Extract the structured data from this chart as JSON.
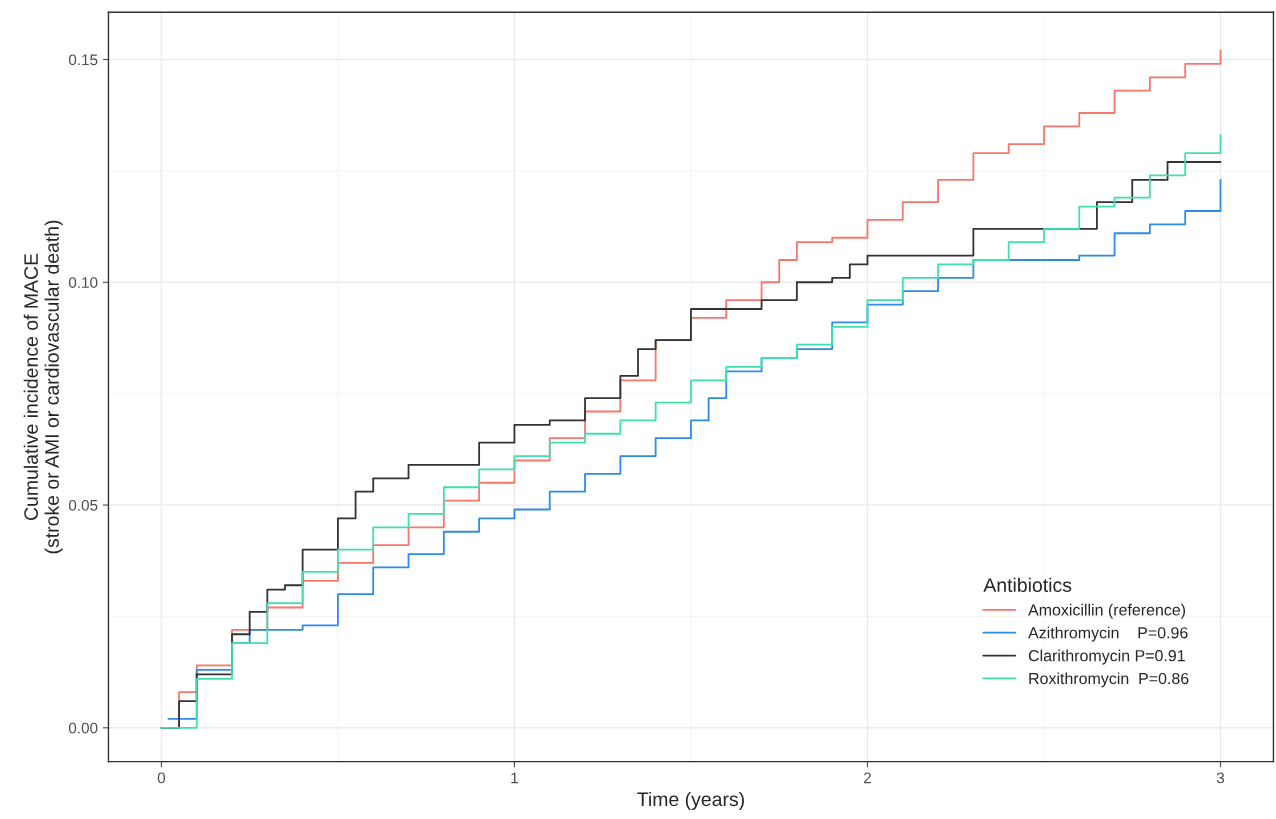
{
  "chart_data": {
    "type": "step",
    "xlabel": "Time (years)",
    "ylabel": "Cumulative incidence of MACE\n(stroke or AMI or cardiovascular death)",
    "legend_title": "Antibiotics",
    "xlim": [
      -0.15,
      3.15
    ],
    "xticks": [
      0,
      1,
      2,
      3
    ],
    "ylim": [
      -0.0076,
      0.1606
    ],
    "yticks": [
      {
        "value": 0,
        "label": "0.00"
      },
      {
        "value": 0.05,
        "label": "0.05"
      },
      {
        "value": 0.1,
        "label": "0.10"
      },
      {
        "value": 0.15,
        "label": "0.15"
      }
    ],
    "grid": true,
    "legend": "bottom right",
    "line_style": "solid",
    "marker": "none",
    "series": [
      {
        "name": "Amoxicillin (reference)",
        "color": "#f8766d",
        "x": [
          0,
          0.05,
          0.1,
          0.2,
          0.3,
          0.4,
          0.5,
          0.6,
          0.7,
          0.8,
          0.9,
          1.0,
          1.1,
          1.2,
          1.3,
          1.4,
          1.5,
          1.6,
          1.7,
          1.75,
          1.8,
          1.9,
          2.0,
          2.1,
          2.2,
          2.3,
          2.4,
          2.5,
          2.6,
          2.7,
          2.8,
          2.9,
          3.0
        ],
        "values": [
          0,
          0.008,
          0.014,
          0.022,
          0.027,
          0.033,
          0.037,
          0.041,
          0.045,
          0.051,
          0.055,
          0.06,
          0.065,
          0.071,
          0.078,
          0.087,
          0.092,
          0.096,
          0.1,
          0.105,
          0.109,
          0.11,
          0.114,
          0.118,
          0.123,
          0.129,
          0.131,
          0.135,
          0.138,
          0.143,
          0.146,
          0.149,
          0.152
        ]
      },
      {
        "name": "Azithromycin    P=0.96",
        "color": "#2b8ceb",
        "x": [
          0.02,
          0.1,
          0.2,
          0.25,
          0.4,
          0.5,
          0.6,
          0.7,
          0.8,
          0.9,
          1.0,
          1.1,
          1.2,
          1.3,
          1.4,
          1.5,
          1.55,
          1.6,
          1.7,
          1.8,
          1.9,
          2.0,
          2.1,
          2.2,
          2.3,
          2.4,
          2.6,
          2.7,
          2.8,
          2.9,
          3.0
        ],
        "values": [
          0.002,
          0.013,
          0.019,
          0.022,
          0.023,
          0.03,
          0.036,
          0.039,
          0.044,
          0.047,
          0.049,
          0.053,
          0.057,
          0.061,
          0.065,
          0.069,
          0.074,
          0.08,
          0.083,
          0.085,
          0.091,
          0.095,
          0.098,
          0.101,
          0.105,
          0.105,
          0.106,
          0.111,
          0.113,
          0.116,
          0.123
        ]
      },
      {
        "name": "Clarithromycin P=0.91",
        "color": "#333333",
        "x": [
          0,
          0.05,
          0.1,
          0.2,
          0.25,
          0.3,
          0.35,
          0.4,
          0.5,
          0.55,
          0.6,
          0.7,
          0.8,
          0.9,
          1.0,
          1.1,
          1.2,
          1.3,
          1.35,
          1.4,
          1.5,
          1.6,
          1.7,
          1.8,
          1.9,
          1.95,
          2.0,
          2.1,
          2.25,
          2.3,
          2.5,
          2.6,
          2.65,
          2.75,
          2.85,
          3.0
        ],
        "values": [
          0,
          0.006,
          0.012,
          0.021,
          0.026,
          0.031,
          0.032,
          0.04,
          0.047,
          0.053,
          0.056,
          0.059,
          0.059,
          0.064,
          0.068,
          0.069,
          0.074,
          0.079,
          0.085,
          0.087,
          0.094,
          0.094,
          0.096,
          0.1,
          0.101,
          0.104,
          0.106,
          0.106,
          0.106,
          0.112,
          0.112,
          0.112,
          0.118,
          0.123,
          0.127,
          0.127
        ]
      },
      {
        "name": "Roxithromycin  P=0.86",
        "color": "#3fe0b0",
        "x": [
          0,
          0.1,
          0.2,
          0.3,
          0.4,
          0.5,
          0.6,
          0.7,
          0.8,
          0.9,
          1.0,
          1.1,
          1.2,
          1.3,
          1.4,
          1.5,
          1.6,
          1.7,
          1.8,
          1.9,
          2.0,
          2.1,
          2.2,
          2.3,
          2.4,
          2.5,
          2.6,
          2.7,
          2.8,
          2.9,
          3.0
        ],
        "values": [
          0,
          0.011,
          0.019,
          0.028,
          0.035,
          0.04,
          0.045,
          0.048,
          0.054,
          0.058,
          0.061,
          0.064,
          0.066,
          0.069,
          0.073,
          0.078,
          0.081,
          0.083,
          0.086,
          0.09,
          0.096,
          0.101,
          0.104,
          0.105,
          0.109,
          0.112,
          0.117,
          0.119,
          0.124,
          0.129,
          0.133
        ]
      }
    ]
  }
}
